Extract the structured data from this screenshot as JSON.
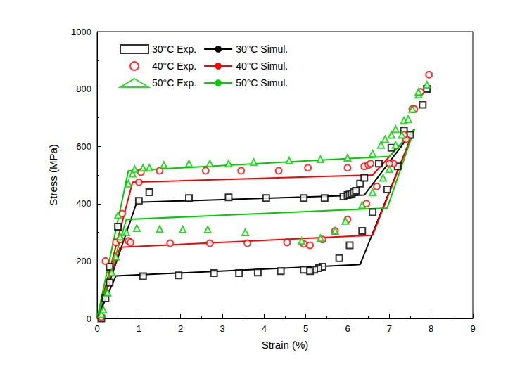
{
  "chart_data": {
    "type": "scatter",
    "x_label": "Strain (%)",
    "y_label": "Stress (MPa)",
    "xlim": [
      0,
      9
    ],
    "xticks": [
      0,
      1,
      2,
      3,
      4,
      5,
      6,
      7,
      8,
      9
    ],
    "ylim": [
      0,
      1000
    ],
    "yticks": [
      0,
      200,
      400,
      600,
      800,
      1000
    ],
    "grid": false,
    "legend": "upper left",
    "series": [
      {
        "name": "30°C Exp.",
        "type": "scatter",
        "marker": "square",
        "color": "#000000",
        "x": [
          0.1,
          0.2,
          0.3,
          0.3,
          0.5,
          1.0,
          1.25,
          2.2,
          3.15,
          4.05,
          4.95,
          5.45,
          5.9,
          6.0,
          6.05,
          6.1,
          6.15,
          6.2,
          6.3,
          6.4,
          6.75,
          7.05,
          7.35,
          7.8,
          7.9,
          7.5,
          7.2,
          6.95,
          6.6,
          6.35,
          6.05,
          5.8,
          5.4,
          5.3,
          5.2,
          5.1,
          4.95,
          4.4,
          3.85,
          3.4,
          2.8,
          1.95,
          1.1
        ],
        "values": [
          0,
          70,
          180,
          125,
          320,
          410,
          440,
          420,
          422,
          420,
          420,
          420,
          425,
          430,
          432,
          435,
          440,
          445,
          470,
          490,
          540,
          595,
          655,
          745,
          800,
          640,
          530,
          450,
          370,
          305,
          255,
          210,
          180,
          175,
          170,
          165,
          170,
          165,
          160,
          158,
          158,
          150,
          147
        ]
      },
      {
        "name": "40°C Exp.",
        "type": "scatter",
        "marker": "circle",
        "color": "#ff0000",
        "x": [
          0.1,
          0.2,
          0.45,
          0.6,
          0.75,
          1.0,
          1.05,
          1.5,
          2.6,
          3.45,
          4.35,
          5.05,
          6.0,
          6.4,
          6.5,
          6.55,
          7.1,
          7.4,
          7.55,
          7.75,
          7.95,
          7.6,
          7.35,
          7.0,
          6.7,
          6.45,
          6.0,
          5.7,
          5.4,
          5.1,
          4.95,
          4.55,
          3.6,
          2.7,
          1.75,
          0.8,
          0.55
        ],
        "values": [
          5,
          200,
          265,
          365,
          270,
          475,
          510,
          515,
          515,
          515,
          515,
          525,
          525,
          530,
          535,
          540,
          540,
          625,
          730,
          790,
          850,
          730,
          640,
          540,
          460,
          400,
          345,
          305,
          275,
          255,
          260,
          265,
          262,
          262,
          262,
          265,
          275
        ]
      },
      {
        "name": "50°C Exp.",
        "type": "scatter",
        "marker": "triangle",
        "color": "#00cc00",
        "x": [
          0.1,
          0.15,
          0.25,
          0.35,
          0.45,
          0.5,
          0.55,
          0.7,
          0.75,
          0.85,
          0.9,
          0.95,
          1.1,
          1.25,
          1.6,
          2.2,
          2.7,
          3.15,
          3.75,
          4.6,
          5.35,
          6.0,
          6.6,
          6.8,
          6.9,
          7.05,
          7.15,
          7.35,
          7.55,
          7.7,
          7.9,
          7.7,
          7.45,
          7.3,
          7.15,
          7.0,
          6.85,
          6.6,
          6.35,
          5.95,
          5.7,
          5.35,
          4.9,
          3.55,
          2.65,
          2.05,
          1.5
        ],
        "values": [
          15,
          30,
          90,
          160,
          215,
          360,
          285,
          300,
          470,
          505,
          520,
          315,
          525,
          525,
          535,
          540,
          540,
          540,
          545,
          550,
          555,
          560,
          575,
          605,
          625,
          640,
          660,
          690,
          730,
          780,
          815,
          790,
          695,
          640,
          605,
          520,
          490,
          440,
          395,
          340,
          305,
          280,
          270,
          300,
          310,
          310,
          312
        ]
      },
      {
        "name": "30°C Simul.",
        "type": "line",
        "marker": "none",
        "line_style": "solid",
        "color": "#000000",
        "x": [
          0,
          0.95,
          6.4,
          7.6,
          6.3,
          0.45,
          0
        ],
        "values": [
          0,
          405,
          430,
          660,
          188,
          148,
          0
        ]
      },
      {
        "name": "40°C Simul.",
        "type": "line",
        "marker": "none",
        "line_style": "solid",
        "color": "#ff0000",
        "x": [
          0,
          0.85,
          6.6,
          7.6,
          6.6,
          0.55,
          0
        ],
        "values": [
          0,
          475,
          500,
          660,
          290,
          248,
          0
        ]
      },
      {
        "name": "50°C Simul.",
        "type": "line",
        "marker": "none",
        "line_style": "solid",
        "color": "#00cc00",
        "x": [
          0,
          0.75,
          7.0,
          7.6,
          6.95,
          0.7,
          0
        ],
        "values": [
          0,
          515,
          565,
          660,
          385,
          345,
          0
        ]
      }
    ]
  }
}
